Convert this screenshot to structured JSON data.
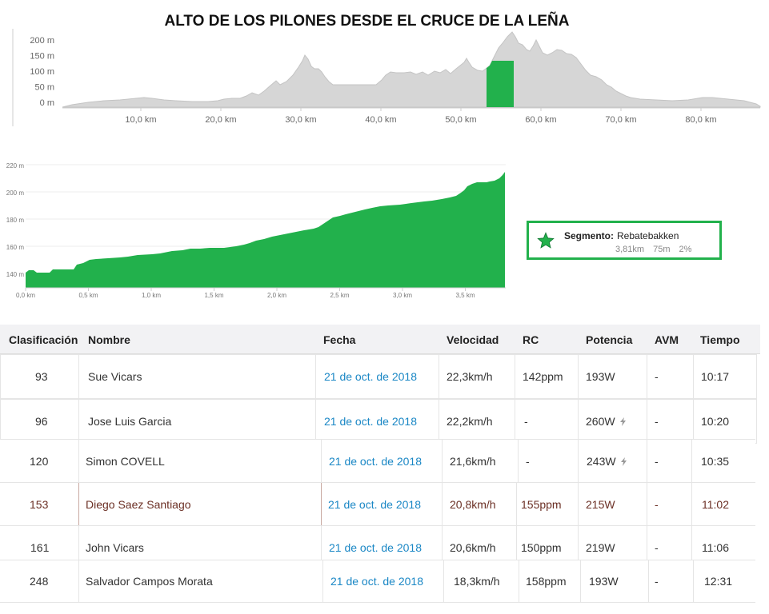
{
  "title": "ALTO DE LOS PILONES DESDE EL CRUCE DE LA LEÑA",
  "route_profile": {
    "y_ticks": [
      "200 m",
      "150 m",
      "100 m",
      "50 m",
      "0 m"
    ],
    "x_ticks": [
      "10,0 km",
      "20,0 km",
      "30,0 km",
      "40,0 km",
      "50,0 km",
      "60,0 km",
      "70,0 km",
      "80,0 km"
    ],
    "fill_color": "#d6d6d6",
    "segment_color": "#22b14c"
  },
  "segment_profile": {
    "y_ticks": [
      "220 m",
      "200 m",
      "180 m",
      "160 m",
      "140 m"
    ],
    "x_ticks": [
      "0,0 km",
      "0,5 km",
      "1,0 km",
      "1,5 km",
      "2,0 km",
      "2,5 km",
      "3,0 km",
      "3,5 km"
    ],
    "fill_color": "#22b14c"
  },
  "segment_card": {
    "label": "Segmento:",
    "name": "Rebatebakken",
    "distance": "3,81km",
    "elevation": "75m",
    "grade": "2%",
    "icon": "star-icon",
    "border_color": "#22b14c"
  },
  "leaderboard": {
    "headers": {
      "rank": "Clasificación",
      "name": "Nombre",
      "date": "Fecha",
      "speed": "Velocidad",
      "hr": "RC",
      "power": "Potencia",
      "vam": "AVM",
      "time": "Tiempo"
    },
    "rows": [
      {
        "rank": "93",
        "name": "Sue Vicars",
        "date": "21 de oct. de 2018",
        "speed": "22,3km/h",
        "hr": "142ppm",
        "power": "193W",
        "vam": "-",
        "time": "10:17"
      },
      {
        "rank": "96",
        "name": "Jose Luis Garcia",
        "date": "21 de oct. de 2018",
        "speed": "22,2km/h",
        "hr": "-",
        "power": "260W",
        "vam": "-",
        "time": "10:20"
      },
      {
        "rank": "120",
        "name": "Simon COVELL",
        "date": "21 de oct. de 2018",
        "speed": "21,6km/h",
        "hr": "-",
        "power": "243W",
        "vam": "-",
        "time": "10:35"
      },
      {
        "rank": "153",
        "name": "Diego Saez Santiago",
        "date": "21 de oct. de 2018",
        "speed": "20,8km/h",
        "hr": "155ppm",
        "power": "215W",
        "vam": "-",
        "time": "11:02"
      },
      {
        "rank": "161",
        "name": "John Vicars",
        "date": "21 de oct. de 2018",
        "speed": "20,6km/h",
        "hr": "150ppm",
        "power": "219W",
        "vam": "-",
        "time": "11:06"
      },
      {
        "rank": "248",
        "name": "Salvador Campos Morata",
        "date": "21 de oct. de 2018",
        "speed": "18,3km/h",
        "hr": "158ppm",
        "power": "193W",
        "vam": "-",
        "time": "12:31"
      }
    ]
  }
}
